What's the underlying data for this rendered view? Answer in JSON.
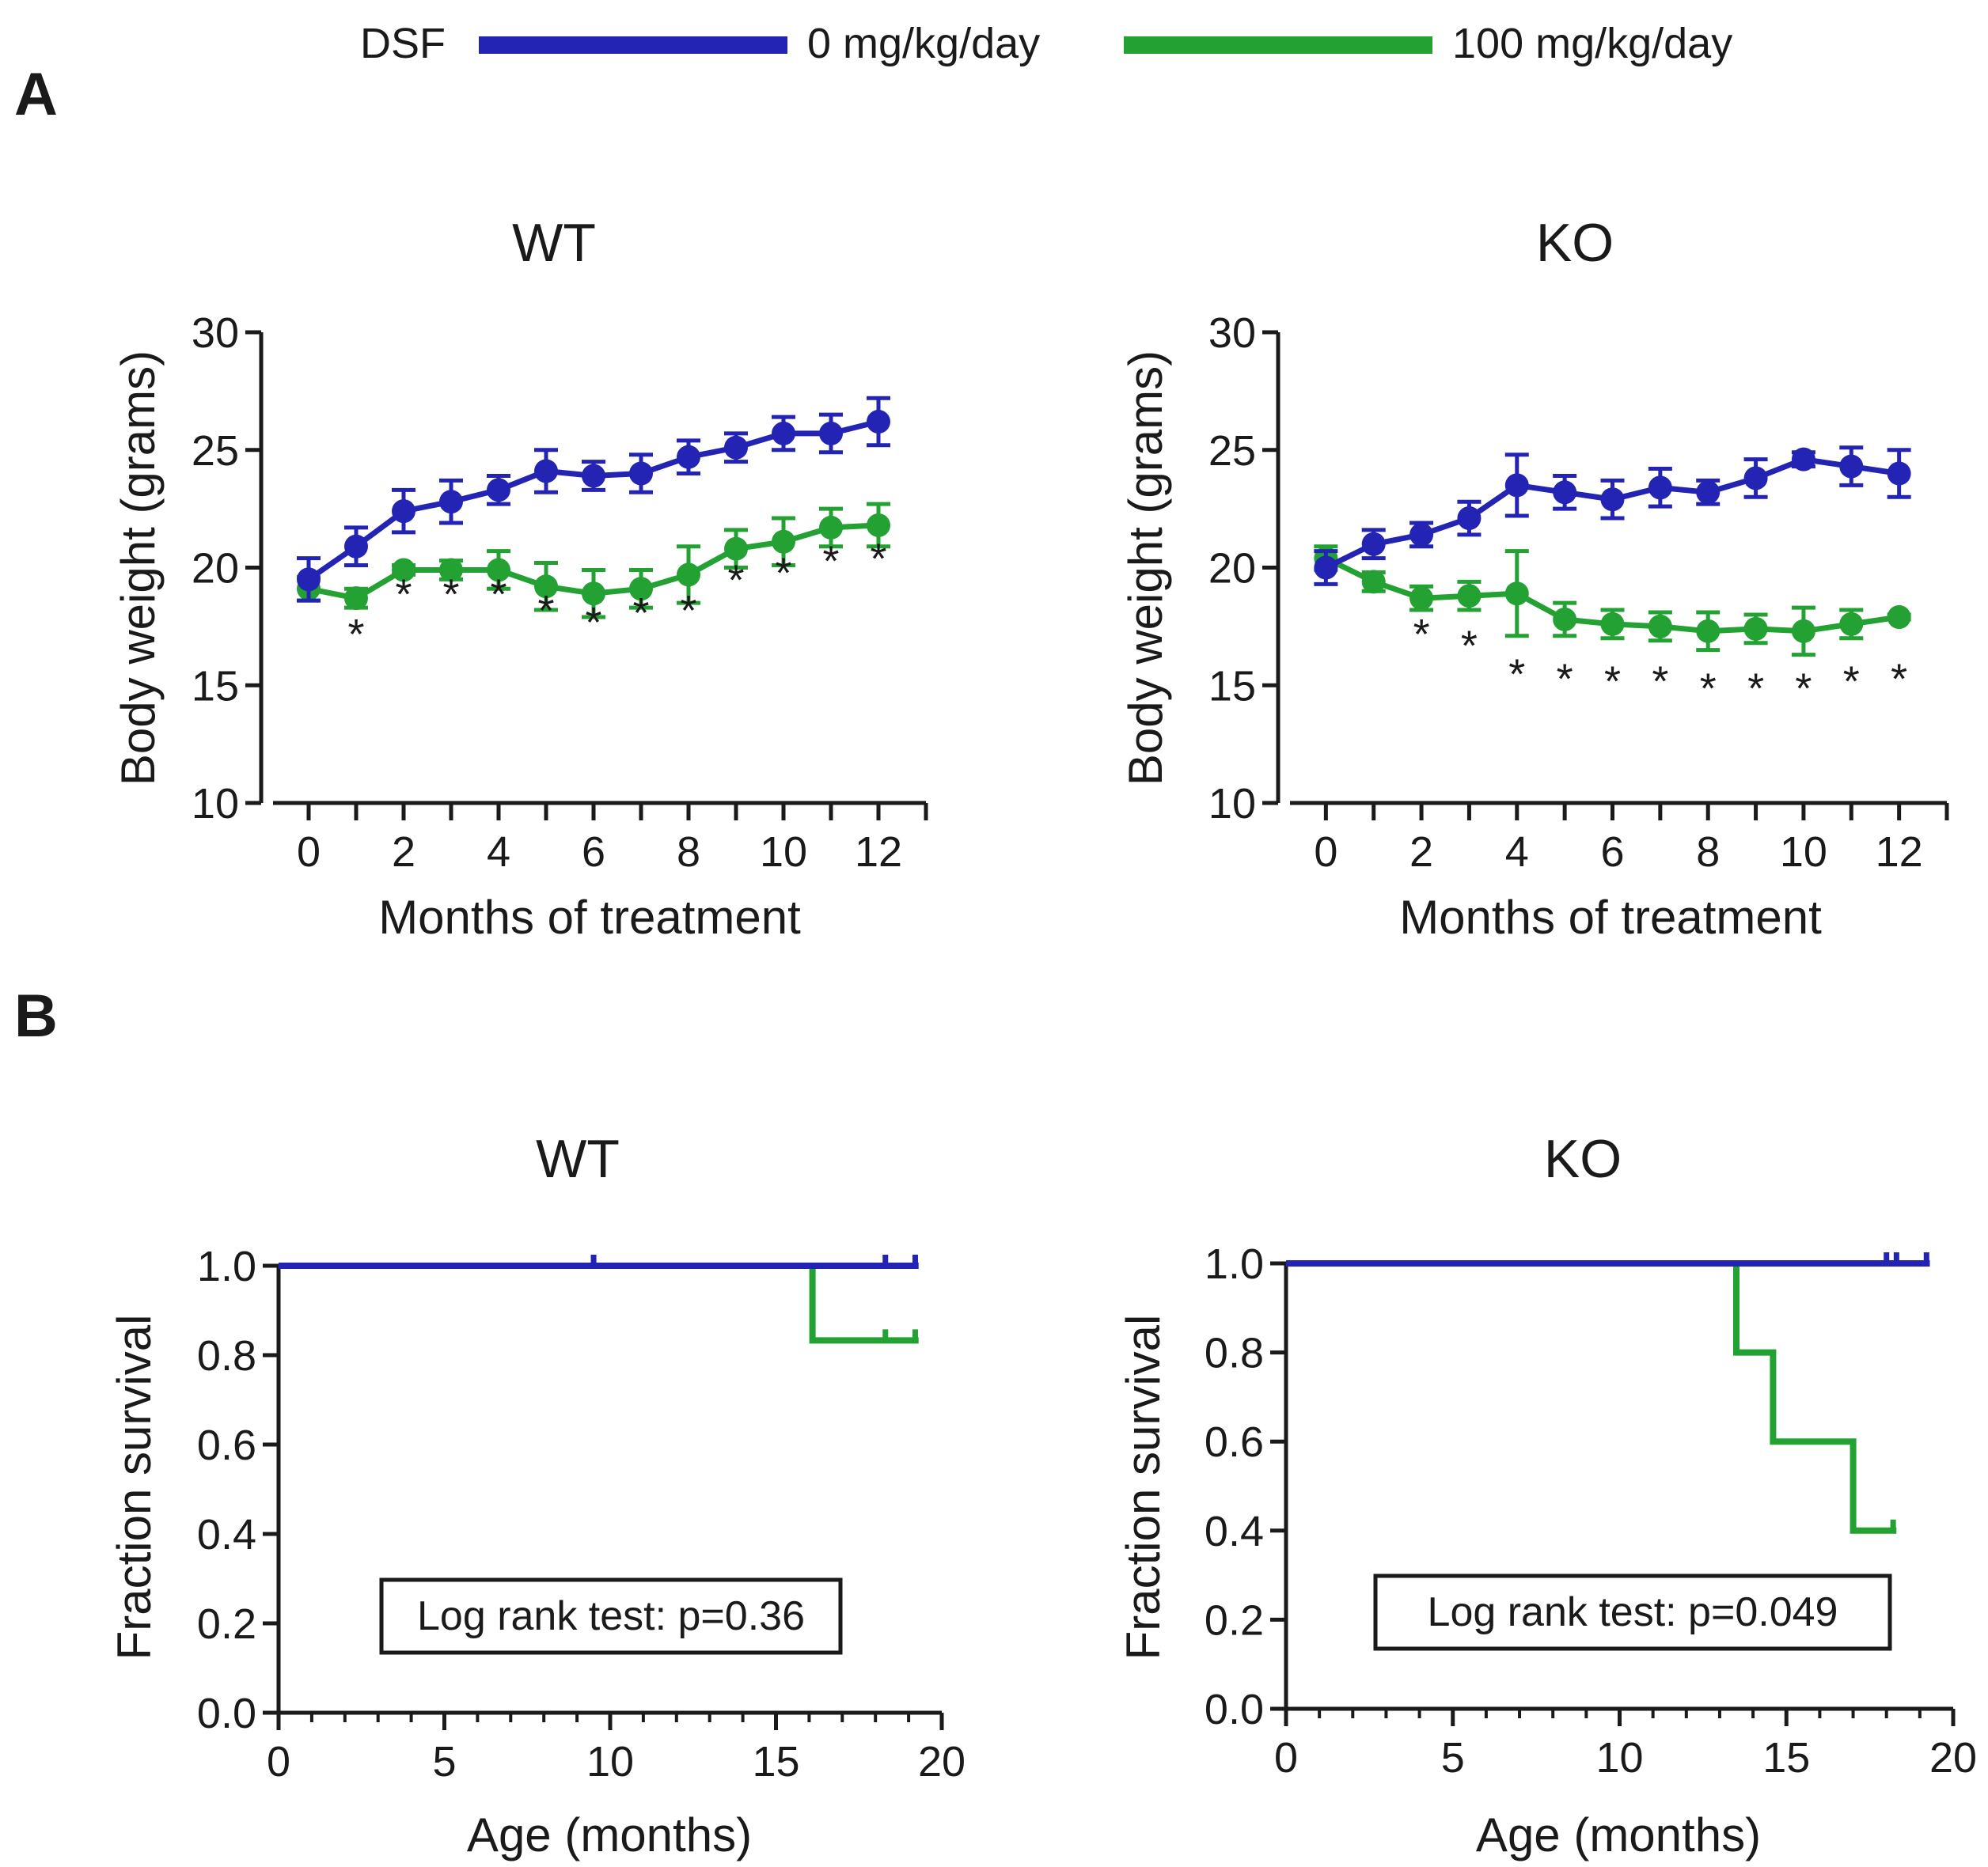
{
  "legend": {
    "label": "DSF",
    "entries": [
      {
        "label": "0 mg/kg/day",
        "color": "#2424b4"
      },
      {
        "label": "100 mg/kg/day",
        "color": "#23a233"
      }
    ]
  },
  "panel_labels": {
    "a": "A",
    "b": "B"
  },
  "colors": {
    "control": "#2424b4",
    "dsf": "#23a233",
    "axis": "#1a1a1a"
  },
  "chart_data": [
    {
      "id": "A-WT",
      "type": "line",
      "title": "WT",
      "xlabel": "Months of treatment",
      "ylabel": "Body weight (grams)",
      "xlim": [
        -1,
        13
      ],
      "ylim": [
        10,
        30
      ],
      "xticks": [
        0,
        2,
        4,
        6,
        8,
        10,
        12
      ],
      "yticks": [
        10,
        15,
        20,
        25,
        30
      ],
      "x": [
        0,
        1,
        2,
        3,
        4,
        5,
        6,
        7,
        8,
        9,
        10,
        11,
        12
      ],
      "series": [
        {
          "name": "0 mg/kg/day",
          "values": [
            19.5,
            20.9,
            22.4,
            22.8,
            23.3,
            24.1,
            23.9,
            24.0,
            24.7,
            25.1,
            25.7,
            25.7,
            26.2
          ],
          "errors": [
            0.9,
            0.8,
            0.9,
            0.9,
            0.6,
            0.9,
            0.6,
            0.8,
            0.7,
            0.6,
            0.7,
            0.8,
            1.0
          ]
        },
        {
          "name": "100 mg/kg/day",
          "values": [
            19.1,
            18.7,
            19.9,
            19.9,
            19.9,
            19.2,
            18.9,
            19.1,
            19.7,
            20.8,
            21.1,
            21.7,
            21.8
          ],
          "errors": [
            0.5,
            0.4,
            0.2,
            0.4,
            0.8,
            1.0,
            1.0,
            0.8,
            1.2,
            0.8,
            1.0,
            0.8,
            0.9
          ]
        }
      ],
      "significance": {
        "mark": "*",
        "x": [
          1,
          2,
          3,
          4,
          5,
          6,
          7,
          8,
          9,
          10,
          11,
          12
        ],
        "y": [
          17.3,
          19.0,
          19.0,
          19.0,
          18.3,
          17.8,
          18.2,
          18.3,
          19.6,
          19.9,
          20.4,
          20.5
        ]
      }
    },
    {
      "id": "A-KO",
      "type": "line",
      "title": "KO",
      "xlabel": "Months of treatment",
      "ylabel": "Body weight (grams)",
      "xlim": [
        -1,
        13
      ],
      "ylim": [
        10,
        30
      ],
      "xticks": [
        0,
        2,
        4,
        6,
        8,
        10,
        12
      ],
      "yticks": [
        10,
        15,
        20,
        25,
        30
      ],
      "x": [
        0,
        1,
        2,
        3,
        4,
        5,
        6,
        7,
        8,
        9,
        10,
        11,
        12
      ],
      "series": [
        {
          "name": "0 mg/kg/day",
          "values": [
            20.0,
            21.0,
            21.4,
            22.1,
            23.5,
            23.2,
            22.9,
            23.4,
            23.2,
            23.8,
            24.6,
            24.3,
            24.0
          ],
          "errors": [
            0.7,
            0.6,
            0.5,
            0.7,
            1.3,
            0.7,
            0.8,
            0.8,
            0.5,
            0.8,
            0.3,
            0.8,
            1.0
          ]
        },
        {
          "name": "100 mg/kg/day",
          "values": [
            20.4,
            19.4,
            18.7,
            18.8,
            18.9,
            17.8,
            17.6,
            17.5,
            17.3,
            17.4,
            17.3,
            17.6,
            17.9
          ],
          "errors": [
            0.5,
            0.4,
            0.5,
            0.6,
            1.8,
            0.7,
            0.6,
            0.6,
            0.8,
            0.6,
            1.0,
            0.6,
            0.1
          ]
        }
      ],
      "significance": {
        "mark": "*",
        "x": [
          2,
          3,
          4,
          5,
          6,
          7,
          8,
          9,
          10,
          11,
          12
        ],
        "y": [
          17.3,
          16.8,
          15.6,
          15.4,
          15.3,
          15.3,
          15.0,
          15.0,
          15.0,
          15.3,
          15.4
        ]
      }
    },
    {
      "id": "B-WT",
      "type": "line",
      "subtype": "survival",
      "title": "WT",
      "xlabel": "Age (months)",
      "ylabel": "Fraction survival",
      "xlim": [
        0,
        20
      ],
      "ylim": [
        0,
        1
      ],
      "xticks": [
        0,
        5,
        10,
        15,
        20
      ],
      "yticks": [
        0.0,
        0.2,
        0.4,
        0.6,
        0.8,
        1.0
      ],
      "ytick_labels": [
        "0.0",
        "0.2",
        "0.4",
        "0.6",
        "0.8",
        "1.0"
      ],
      "series": [
        {
          "name": "0 mg/kg/day",
          "steps": [
            [
              0,
              1.0
            ],
            [
              19.3,
              1.0
            ]
          ],
          "censored": [
            [
              9.5,
              1.0
            ],
            [
              18.3,
              1.0
            ],
            [
              19.2,
              1.0
            ]
          ]
        },
        {
          "name": "100 mg/kg/day",
          "steps": [
            [
              0,
              1.0
            ],
            [
              16.1,
              1.0
            ],
            [
              16.1,
              0.833
            ],
            [
              19.3,
              0.833
            ]
          ],
          "censored": [
            [
              18.3,
              0.833
            ],
            [
              19.2,
              0.833
            ]
          ]
        }
      ],
      "annotation": "Log rank test: p=0.36"
    },
    {
      "id": "B-KO",
      "type": "line",
      "subtype": "survival",
      "title": "KO",
      "xlabel": "Age (months)",
      "ylabel": "Fraction survival",
      "xlim": [
        0,
        20
      ],
      "ylim": [
        0,
        1
      ],
      "xticks": [
        0,
        5,
        10,
        15,
        20
      ],
      "yticks": [
        0.0,
        0.2,
        0.4,
        0.6,
        0.8,
        1.0
      ],
      "ytick_labels": [
        "0.0",
        "0.2",
        "0.4",
        "0.6",
        "0.8",
        "1.0"
      ],
      "series": [
        {
          "name": "0 mg/kg/day",
          "steps": [
            [
              0,
              1.0
            ],
            [
              19.3,
              1.0
            ]
          ],
          "censored": [
            [
              18.0,
              1.0
            ],
            [
              18.3,
              1.0
            ],
            [
              19.2,
              1.0
            ]
          ]
        },
        {
          "name": "100 mg/kg/day",
          "steps": [
            [
              0,
              1.0
            ],
            [
              13.5,
              1.0
            ],
            [
              13.5,
              0.8
            ],
            [
              14.6,
              0.8
            ],
            [
              14.6,
              0.6
            ],
            [
              17.0,
              0.6
            ],
            [
              17.0,
              0.4
            ],
            [
              18.3,
              0.4
            ]
          ],
          "censored": [
            [
              18.2,
              0.4
            ]
          ]
        }
      ],
      "annotation": "Log rank test: p=0.049"
    }
  ]
}
